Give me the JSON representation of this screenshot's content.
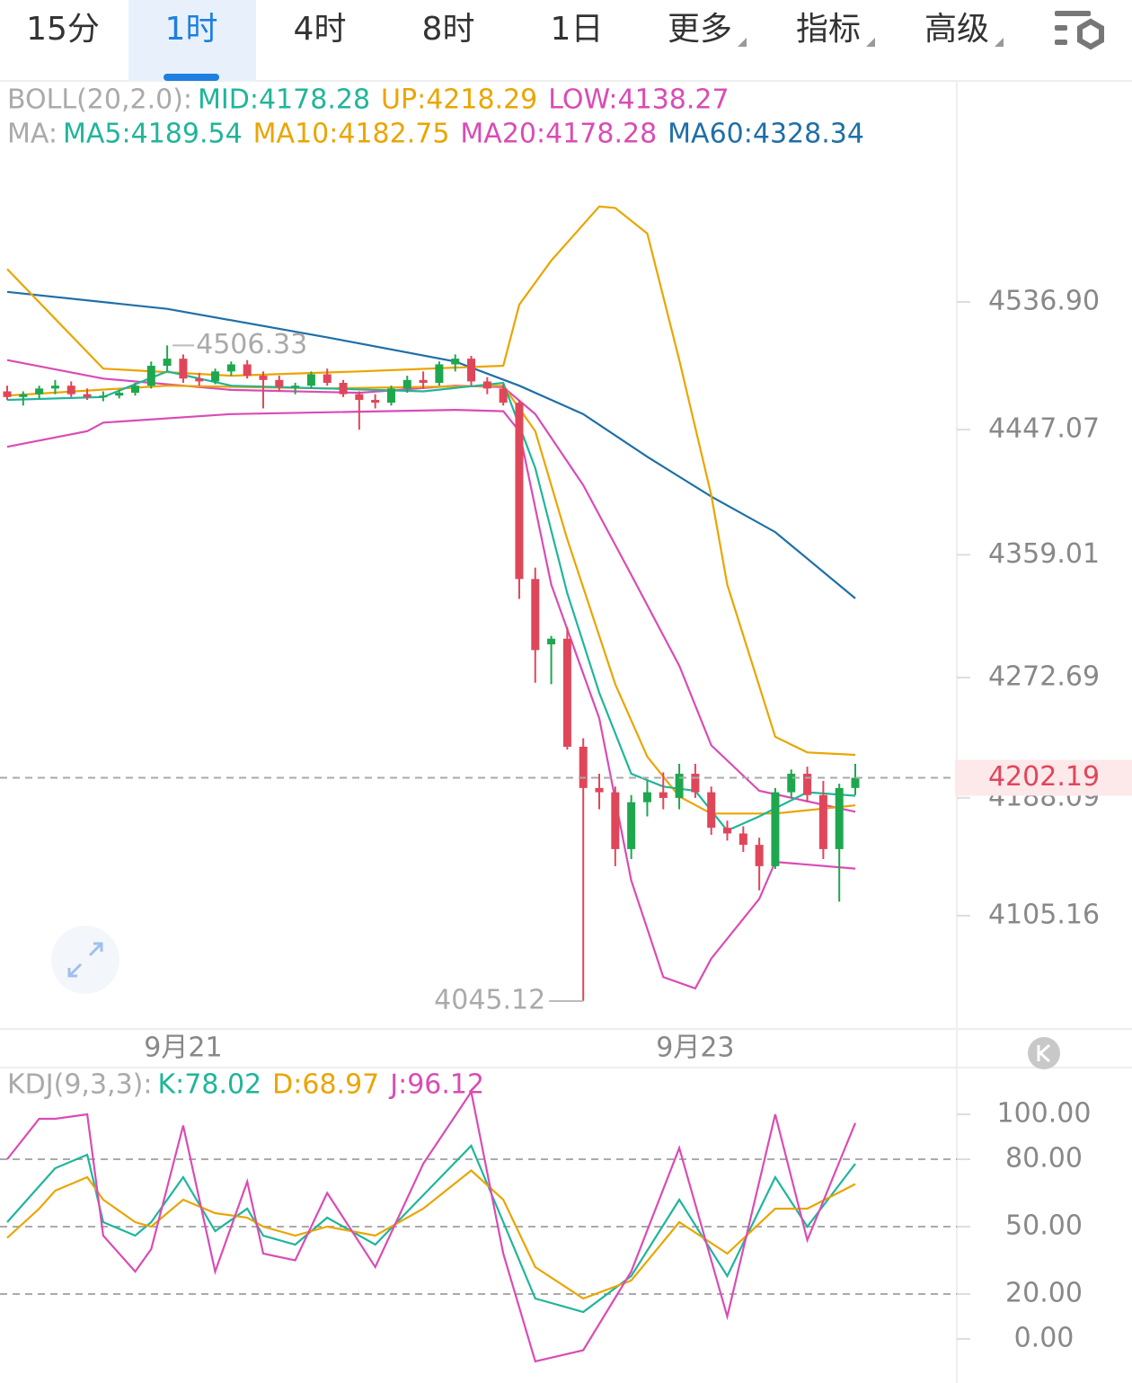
{
  "toolbar": {
    "tabs": [
      {
        "label": "15分",
        "menu": false
      },
      {
        "label": "1时",
        "menu": false
      },
      {
        "label": "4时",
        "menu": false
      },
      {
        "label": "8时",
        "menu": false
      },
      {
        "label": "1日",
        "menu": false
      },
      {
        "label": "更多",
        "menu": true
      },
      {
        "label": "指标",
        "menu": true
      },
      {
        "label": "高级",
        "menu": true
      }
    ],
    "selected": 1
  },
  "chart_data": [
    {
      "type": "candlestick",
      "legend": [
        {
          "title": "BOLL(20,2.0):",
          "items": [
            {
              "text": "MID:4178.28",
              "color": "#20b59a"
            },
            {
              "text": "UP:4218.29",
              "color": "#eaa500"
            },
            {
              "text": "LOW:4138.27",
              "color": "#d94cb5"
            }
          ]
        },
        {
          "title": "MA:",
          "items": [
            {
              "text": "MA5:4189.54",
              "color": "#20b59a"
            },
            {
              "text": "MA10:4182.75",
              "color": "#eaa500"
            },
            {
              "text": "MA20:4178.28",
              "color": "#d94cb5"
            },
            {
              "text": "MA60:4328.34",
              "color": "#1e6fa8"
            }
          ]
        }
      ],
      "categories": [
        null,
        null,
        null,
        null,
        null,
        null,
        null,
        null,
        null,
        null,
        null,
        "9月21",
        null,
        null,
        null,
        null,
        null,
        null,
        null,
        null,
        null,
        null,
        null,
        null,
        null,
        null,
        null,
        null,
        null,
        null,
        null,
        null,
        null,
        null,
        null,
        null,
        null,
        null,
        null,
        null,
        null,
        null,
        null,
        "9月23",
        null,
        null,
        null,
        null,
        null,
        null,
        null,
        null,
        null,
        null
      ],
      "ohlc": [
        [
          4474,
          4478,
          4468,
          4470
        ],
        [
          4470,
          4474,
          4464,
          4472
        ],
        [
          4472,
          4478,
          4469,
          4476
        ],
        [
          4476,
          4482,
          4472,
          4478
        ],
        [
          4478,
          4481,
          4470,
          4472
        ],
        [
          4472,
          4476,
          4468,
          4470
        ],
        [
          4470,
          4474,
          4467,
          4471
        ],
        [
          4471,
          4475,
          4469,
          4473
        ],
        [
          4473,
          4480,
          4471,
          4478
        ],
        [
          4478,
          4495,
          4476,
          4492
        ],
        [
          4492,
          4506.33,
          4488,
          4497
        ],
        [
          4497,
          4500,
          4480,
          4483
        ],
        [
          4483,
          4487,
          4478,
          4481
        ],
        [
          4481,
          4490,
          4479,
          4488
        ],
        [
          4488,
          4495,
          4485,
          4493
        ],
        [
          4493,
          4496,
          4483,
          4485
        ],
        [
          4485,
          4488,
          4462,
          4482
        ],
        [
          4482,
          4485,
          4474,
          4477
        ],
        [
          4477,
          4480,
          4472,
          4478
        ],
        [
          4478,
          4488,
          4476,
          4486
        ],
        [
          4486,
          4490,
          4478,
          4480
        ],
        [
          4480,
          4482,
          4470,
          4472
        ],
        [
          4472,
          4474,
          4447,
          4468
        ],
        [
          4468,
          4472,
          4462,
          4466
        ],
        [
          4466,
          4478,
          4464,
          4476
        ],
        [
          4476,
          4485,
          4473,
          4482
        ],
        [
          4482,
          4488,
          4476,
          4480
        ],
        [
          4480,
          4495,
          4478,
          4493
        ],
        [
          4493,
          4500,
          4488,
          4497
        ],
        [
          4497,
          4499,
          4478,
          4481
        ],
        [
          4481,
          4484,
          4472,
          4476
        ],
        [
          4476,
          4479,
          4464,
          4466
        ],
        [
          4466,
          4468,
          4328,
          4342
        ],
        [
          4342,
          4350,
          4269,
          4292
        ],
        [
          4296,
          4302,
          4268,
          4300
        ],
        [
          4300,
          4308,
          4222,
          4224
        ],
        [
          4224,
          4230,
          4045.12,
          4195
        ],
        [
          4195,
          4205,
          4180,
          4192
        ],
        [
          4192,
          4196,
          4140,
          4152
        ],
        [
          4152,
          4190,
          4145,
          4185
        ],
        [
          4185,
          4200,
          4175,
          4192
        ],
        [
          4192,
          4206,
          4180,
          4188
        ],
        [
          4188,
          4212,
          4180,
          4205
        ],
        [
          4205,
          4212,
          4188,
          4192
        ],
        [
          4192,
          4196,
          4162,
          4167
        ],
        [
          4167,
          4172,
          4158,
          4163
        ],
        [
          4163,
          4168,
          4150,
          4155
        ],
        [
          4155,
          4160,
          4123,
          4140
        ],
        [
          4140,
          4195,
          4138,
          4192
        ],
        [
          4192,
          4208,
          4188,
          4205
        ],
        [
          4205,
          4210,
          4185,
          4190
        ],
        [
          4190,
          4200,
          4145,
          4152
        ],
        [
          4152,
          4198,
          4115,
          4195
        ],
        [
          4195,
          4212,
          4190,
          4202.19
        ]
      ],
      "up_color": "#1fa74f",
      "down_color": "#e0465a",
      "lines": [
        {
          "color": "#1e6fa8",
          "x": [
            0,
            10,
            20,
            28,
            32,
            36,
            40,
            44,
            48,
            53
          ],
          "values": [
            4544,
            4532,
            4512,
            4495,
            4478,
            4458,
            4428,
            4400,
            4375,
            4328.34
          ]
        },
        {
          "color": "#eaa500",
          "x": [
            0,
            3,
            6,
            14,
            22,
            31,
            32,
            34,
            37,
            38,
            40,
            42,
            44,
            45,
            48,
            50,
            53
          ],
          "values": [
            4560,
            4525,
            4490,
            4485,
            4488,
            4492,
            4535,
            4566,
            4604,
            4603,
            4585,
            4496,
            4401,
            4338,
            4231,
            4220,
            4218.29
          ]
        },
        {
          "color": "#d94cb5",
          "x": [
            0,
            5,
            6,
            14,
            28,
            31,
            32,
            34,
            37,
            39,
            41,
            43,
            44,
            47,
            48,
            53
          ],
          "values": [
            4435,
            4446,
            4452,
            4458,
            4461,
            4460,
            4446,
            4338,
            4244,
            4130,
            4062,
            4054,
            4075,
            4117,
            4143,
            4138.27
          ]
        },
        {
          "color": "#d94cb5",
          "x": [
            0,
            6,
            14,
            22,
            28,
            31,
            33,
            36,
            39,
            42,
            44,
            47,
            53
          ],
          "values": [
            4496,
            4483,
            4475,
            4473,
            4478,
            4477,
            4458,
            4408,
            4345,
            4281,
            4225,
            4193,
            4178.28
          ]
        },
        {
          "color": "#eaa500",
          "x": [
            0,
            10,
            20,
            31,
            33,
            35,
            38,
            40,
            42,
            44,
            48,
            53
          ],
          "values": [
            4471,
            4478,
            4476,
            4478,
            4446,
            4370,
            4268,
            4217,
            4189,
            4177,
            4177,
            4182.75
          ]
        },
        {
          "color": "#20b59a",
          "x": [
            0,
            6,
            10,
            14,
            20,
            26,
            31,
            33,
            35,
            37,
            39,
            41,
            43,
            45,
            47,
            50,
            53
          ],
          "values": [
            4468,
            4470,
            4488,
            4478,
            4476,
            4474,
            4480,
            4420,
            4332,
            4262,
            4205,
            4196,
            4193,
            4165,
            4175,
            4192,
            4189.54
          ]
        }
      ],
      "ylim": [
        4025.5,
        4692.4
      ],
      "yticks": [
        {
          "value": 4536.9,
          "label": "4536.90"
        },
        4447.07,
        4359.01,
        4272.69,
        4188.09,
        4105.16
      ],
      "last_price": 4202.19,
      "max_label": 4506.33,
      "min_label": 4045.12
    },
    {
      "type": "line",
      "legend": [
        {
          "title": "KDJ(9,3,3):",
          "items": [
            {
              "text": "K:78.02",
              "color": "#20b59a"
            },
            {
              "text": "D:68.97",
              "color": "#eaa500"
            },
            {
              "text": "J:96.12",
              "color": "#d94cb5"
            }
          ]
        }
      ],
      "x": [
        0,
        2,
        3,
        5,
        6,
        8,
        9,
        11,
        13,
        15,
        16,
        18,
        20,
        23,
        26,
        29,
        31,
        33,
        36,
        39,
        42,
        45,
        48,
        50,
        53
      ],
      "series": [
        {
          "color": "#20b59a",
          "values": [
            52,
            68,
            76,
            82,
            52,
            46,
            52,
            72,
            48,
            58,
            46,
            42,
            54,
            42,
            64,
            86,
            52,
            18,
            12,
            28,
            62,
            28,
            72,
            50,
            78.02
          ]
        },
        {
          "color": "#eaa500",
          "values": [
            45,
            58,
            66,
            72,
            62,
            52,
            50,
            62,
            56,
            54,
            50,
            46,
            50,
            46,
            58,
            75,
            62,
            32,
            18,
            26,
            52,
            38,
            58,
            58,
            68.97
          ]
        },
        {
          "color": "#d94cb5",
          "values": [
            80,
            98,
            98,
            100,
            46,
            30,
            40,
            95,
            30,
            70,
            38,
            35,
            65,
            32,
            78,
            110,
            38,
            -10,
            -5,
            30,
            85,
            10,
            100,
            44,
            96.12
          ]
        }
      ],
      "ylim": [
        -19.6,
        120.8
      ],
      "yticks": [
        {
          "value": 100,
          "label": "100.00",
          "grid": false
        },
        {
          "value": 80,
          "label": "80.00",
          "grid": true
        },
        {
          "value": 50,
          "label": "50.00",
          "grid": true
        },
        {
          "value": 20,
          "label": "20.00",
          "grid": true
        },
        {
          "value": 0,
          "label": "0.00",
          "grid": false
        }
      ]
    }
  ]
}
